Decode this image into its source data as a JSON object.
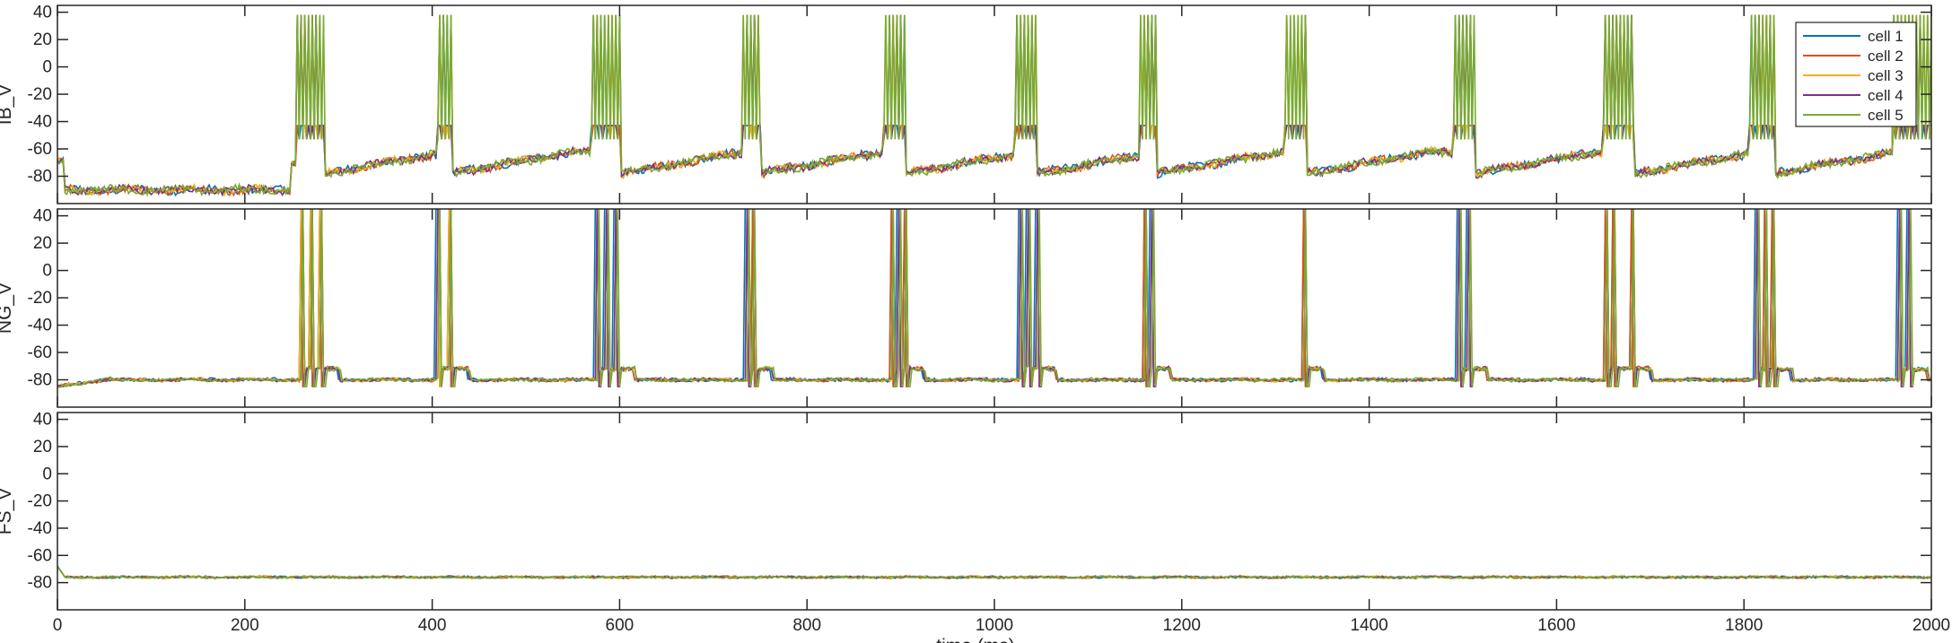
{
  "figure": {
    "xlabel": "time (ms)"
  },
  "legend": {
    "entries": [
      {
        "label": "cell 1",
        "color": "#0072BD"
      },
      {
        "label": "cell 2",
        "color": "#D95319"
      },
      {
        "label": "cell 3",
        "color": "#EDB120"
      },
      {
        "label": "cell 4",
        "color": "#7E2F8E"
      },
      {
        "label": "cell 5",
        "color": "#77AC30"
      }
    ],
    "placement": "top-right of first panel"
  },
  "chart_data": [
    {
      "type": "line",
      "ylabel": "IB_V",
      "xlim": [
        0,
        2000
      ],
      "ylim": [
        -100,
        45
      ],
      "x_ticks": [
        "0",
        "200",
        "400",
        "600",
        "800",
        "1000",
        "1200",
        "1400",
        "1600",
        "1800",
        "2000"
      ],
      "y_ticks": [
        "40",
        "20",
        "0",
        "-20",
        "-40",
        "-60",
        "-80"
      ],
      "grid": false,
      "resting_mv": -90,
      "burst_high_mv": 38,
      "burst_low_mv": -53,
      "bursts": [
        [
          255,
          285
        ],
        [
          405,
          420
        ],
        [
          570,
          600
        ],
        [
          732,
          750
        ],
        [
          882,
          905
        ],
        [
          1022,
          1045
        ],
        [
          1155,
          1172
        ],
        [
          1310,
          1333
        ],
        [
          1490,
          1513
        ],
        [
          1650,
          1683
        ],
        [
          1805,
          1832
        ],
        [
          1960,
          2000
        ]
      ],
      "series": [
        {
          "name": "cell 1",
          "description": "membrane potential, bursting"
        },
        {
          "name": "cell 2",
          "description": "membrane potential, bursting"
        },
        {
          "name": "cell 3",
          "description": "membrane potential, bursting"
        },
        {
          "name": "cell 4",
          "description": "membrane potential, bursting"
        },
        {
          "name": "cell 5",
          "description": "membrane potential, bursting"
        }
      ]
    },
    {
      "type": "line",
      "ylabel": "NG_V",
      "xlim": [
        0,
        2000
      ],
      "ylim": [
        -100,
        45
      ],
      "x_ticks": [
        "0",
        "200",
        "400",
        "600",
        "800",
        "1000",
        "1200",
        "1400",
        "1600",
        "1800",
        "2000"
      ],
      "y_ticks": [
        "40",
        "20",
        "0",
        "-20",
        "-40",
        "-60",
        "-80"
      ],
      "grid": false,
      "resting_mv": -80,
      "spike_peak_mv": 45,
      "spike_trough_mv": -85,
      "spikes": [
        260,
        270,
        280,
        405,
        418,
        575,
        585,
        595,
        735,
        742,
        890,
        897,
        904,
        1027,
        1035,
        1045,
        1160,
        1167,
        1330,
        1495,
        1505,
        1652,
        1660,
        1680,
        1813,
        1822,
        1830,
        1965,
        1975
      ],
      "series": [
        {
          "name": "cell 1"
        },
        {
          "name": "cell 2"
        },
        {
          "name": "cell 3"
        },
        {
          "name": "cell 4"
        },
        {
          "name": "cell 5"
        }
      ]
    },
    {
      "type": "line",
      "ylabel": "FS_V",
      "xlim": [
        0,
        2000
      ],
      "ylim": [
        -100,
        45
      ],
      "x_ticks": [
        "0",
        "200",
        "400",
        "600",
        "800",
        "1000",
        "1200",
        "1400",
        "1600",
        "1800",
        "2000"
      ],
      "y_ticks": [
        "40",
        "20",
        "0",
        "-20",
        "-40",
        "-60",
        "-80"
      ],
      "grid": false,
      "resting_mv": -76,
      "series": [
        {
          "name": "cell 1"
        },
        {
          "name": "cell 2"
        },
        {
          "name": "cell 3"
        },
        {
          "name": "cell 4"
        },
        {
          "name": "cell 5"
        }
      ]
    }
  ]
}
